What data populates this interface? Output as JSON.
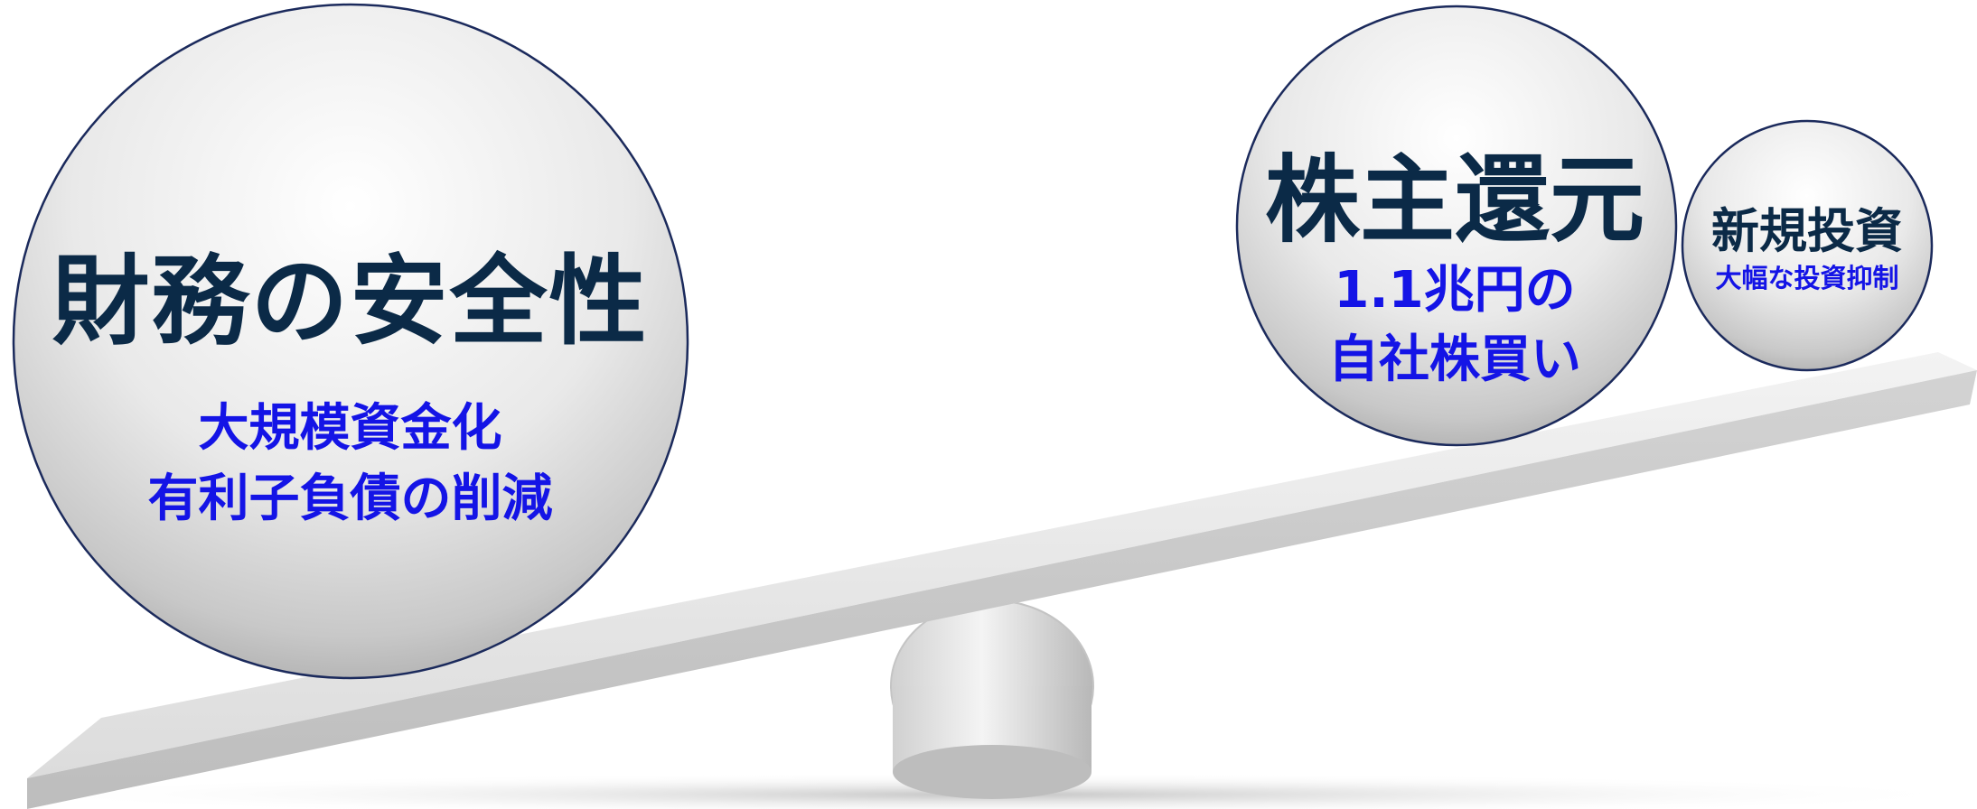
{
  "left_ball": {
    "title": "財務の安全性",
    "sub_line1": "大規模資金化",
    "sub_line2": "有利子負債の削減"
  },
  "middle_ball": {
    "title": "株主還元",
    "sub_line1": "1.1兆円の",
    "sub_line2": "自社株買い"
  },
  "right_ball": {
    "title": "新規投資",
    "sub_line1": "大幅な投資抑制"
  },
  "colors": {
    "title_text": "#0b2a47",
    "sub_text": "#1414e6",
    "ball_outline": "#1b2a5c",
    "plank_top": "#eeeeee",
    "plank_side": "#c9c9c9"
  }
}
